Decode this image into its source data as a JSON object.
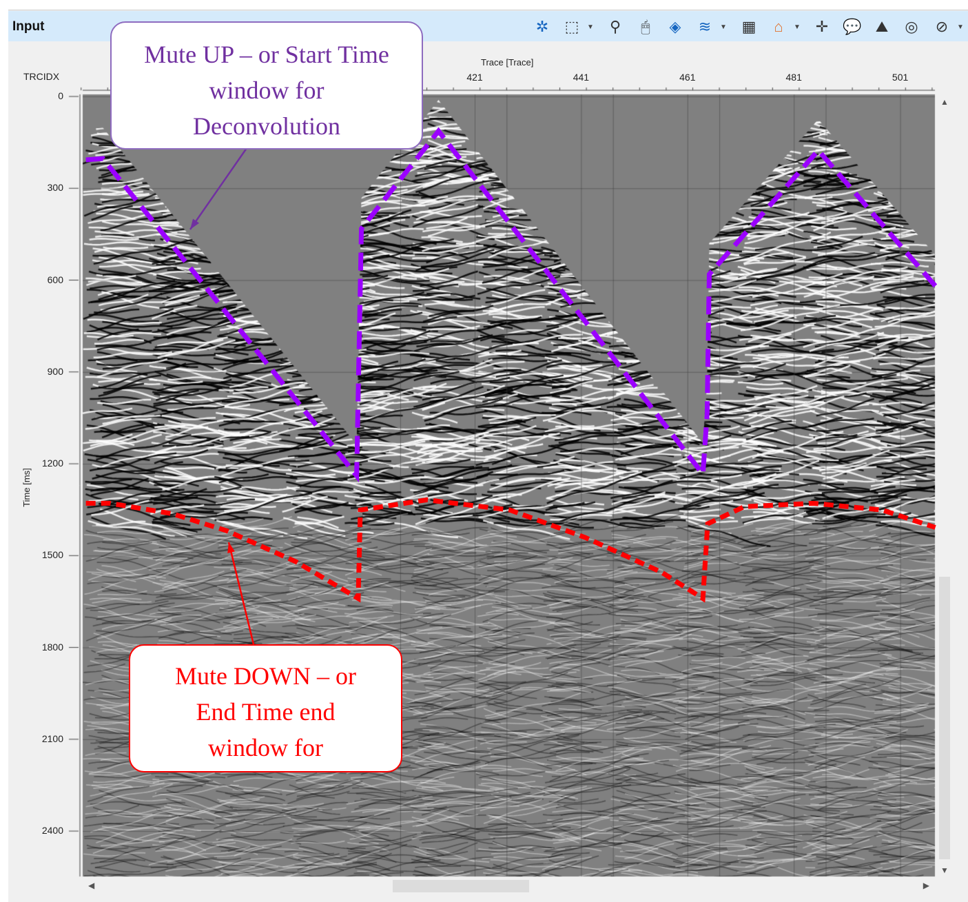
{
  "window": {
    "title": "Input"
  },
  "toolbar": {
    "icons": [
      "gear-icon",
      "zoom-window-icon",
      "magnifier-icon",
      "mouse-icon",
      "layers-icon",
      "wiggle-icon",
      "trace-table-icon",
      "spectrum-icon",
      "crosshair-pick-icon",
      "comment-icon",
      "export-image-icon",
      "tape-icon",
      "compass-icon"
    ],
    "dropdowns": [
      "zoom-window",
      "wiggle",
      "spectrum",
      "compass"
    ]
  },
  "callouts": {
    "mute_up": {
      "lines": [
        "Mute UP – or Start Time",
        "window for",
        "Deconvolution"
      ],
      "color": "#7030a0"
    },
    "mute_down": {
      "lines": [
        "Mute DOWN – or",
        "End Time end",
        "window for"
      ],
      "color": "#ff0000"
    }
  },
  "chart_data": {
    "type": "seismic-section",
    "header_label": "TRCIDX",
    "xlabel": "Trace [Trace]",
    "ylabel": "Time [ms]",
    "x_ticks": [
      421,
      441,
      461,
      481,
      501
    ],
    "y_ticks": [
      0,
      300,
      600,
      900,
      1200,
      1500,
      1800,
      2100,
      2400
    ],
    "xlim": [
      347.3,
      507.6
    ],
    "ylim": [
      0,
      2550
    ],
    "grid": true,
    "mute_up": {
      "color": "#9b00ff",
      "points": [
        [
          347.9,
          207
        ],
        [
          351.1,
          203
        ],
        [
          398.8,
          1239
        ],
        [
          399.7,
          432
        ],
        [
          414.2,
          113
        ],
        [
          463.9,
          1234
        ],
        [
          464.7,
          1036
        ],
        [
          465.1,
          581
        ],
        [
          485.6,
          176
        ],
        [
          507.6,
          619
        ]
      ]
    },
    "mute_down": {
      "color": "#ff0000",
      "points": [
        [
          347.9,
          1329
        ],
        [
          352.4,
          1329
        ],
        [
          364.1,
          1363
        ],
        [
          374.4,
          1419
        ],
        [
          387.4,
          1520
        ],
        [
          399.1,
          1640
        ],
        [
          399.5,
          1351
        ],
        [
          412.0,
          1318
        ],
        [
          427.6,
          1351
        ],
        [
          441.8,
          1441
        ],
        [
          456.1,
          1554
        ],
        [
          463.9,
          1640
        ],
        [
          464.8,
          1396
        ],
        [
          471.7,
          1340
        ],
        [
          484.7,
          1329
        ],
        [
          497.6,
          1351
        ],
        [
          507.6,
          1408
        ]
      ]
    }
  }
}
